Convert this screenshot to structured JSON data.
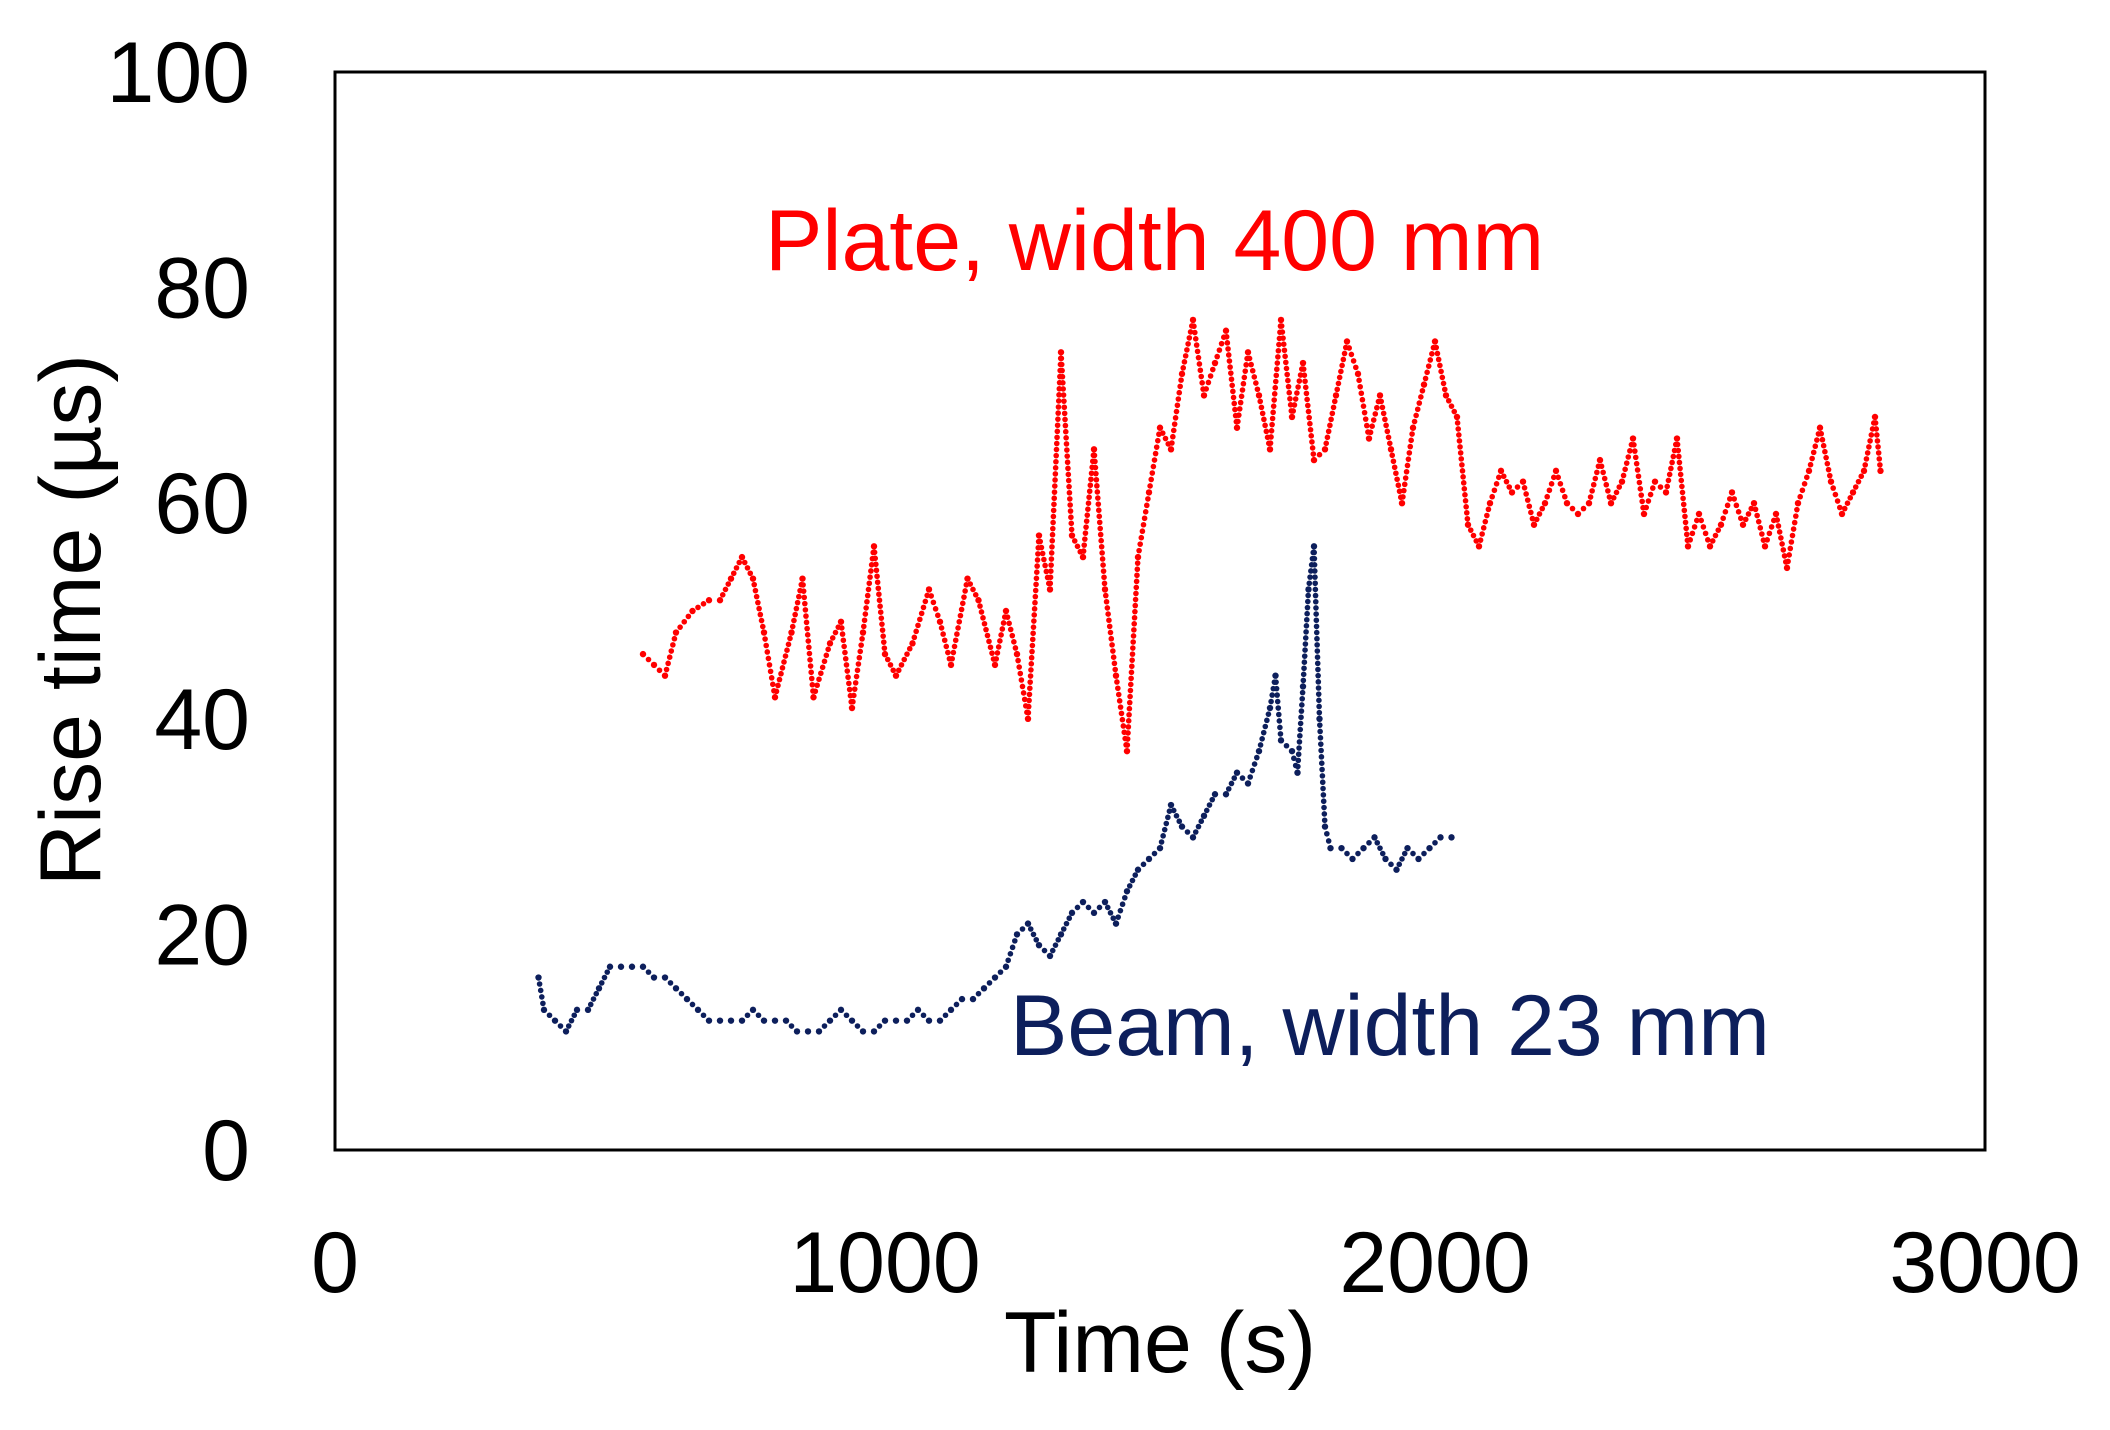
{
  "chart_data": {
    "type": "scatter",
    "title": "",
    "xlabel": "Time (s)",
    "ylabel": "Rise time (µs)",
    "xlim": [
      0,
      3000
    ],
    "ylim": [
      0,
      100
    ],
    "xticks": [
      "0",
      "1000",
      "2000",
      "3000"
    ],
    "yticks": [
      "0",
      "20",
      "40",
      "60",
      "80",
      "100"
    ],
    "grid": false,
    "legend": "none",
    "series": [
      {
        "name": "Plate, width 400 mm",
        "color": "#ff0000",
        "points": [
          [
            560,
            46
          ],
          [
            580,
            45
          ],
          [
            600,
            44
          ],
          [
            620,
            48
          ],
          [
            650,
            50
          ],
          [
            680,
            51
          ],
          [
            700,
            51
          ],
          [
            720,
            53
          ],
          [
            740,
            55
          ],
          [
            760,
            53
          ],
          [
            780,
            48
          ],
          [
            800,
            42
          ],
          [
            830,
            48
          ],
          [
            850,
            53
          ],
          [
            870,
            42
          ],
          [
            900,
            47
          ],
          [
            920,
            49
          ],
          [
            940,
            41
          ],
          [
            960,
            48
          ],
          [
            980,
            56
          ],
          [
            1000,
            46
          ],
          [
            1020,
            44
          ],
          [
            1050,
            47
          ],
          [
            1080,
            52
          ],
          [
            1100,
            49
          ],
          [
            1120,
            45
          ],
          [
            1150,
            53
          ],
          [
            1170,
            51
          ],
          [
            1200,
            45
          ],
          [
            1220,
            50
          ],
          [
            1240,
            46
          ],
          [
            1260,
            40
          ],
          [
            1280,
            57
          ],
          [
            1300,
            52
          ],
          [
            1320,
            74
          ],
          [
            1340,
            57
          ],
          [
            1360,
            55
          ],
          [
            1380,
            65
          ],
          [
            1400,
            52
          ],
          [
            1420,
            44
          ],
          [
            1440,
            37
          ],
          [
            1460,
            55
          ],
          [
            1480,
            61
          ],
          [
            1500,
            67
          ],
          [
            1520,
            65
          ],
          [
            1540,
            72
          ],
          [
            1560,
            77
          ],
          [
            1580,
            70
          ],
          [
            1600,
            73
          ],
          [
            1620,
            76
          ],
          [
            1640,
            67
          ],
          [
            1660,
            74
          ],
          [
            1680,
            70
          ],
          [
            1700,
            65
          ],
          [
            1720,
            77
          ],
          [
            1740,
            68
          ],
          [
            1760,
            73
          ],
          [
            1780,
            64
          ],
          [
            1800,
            65
          ],
          [
            1820,
            70
          ],
          [
            1840,
            75
          ],
          [
            1860,
            72
          ],
          [
            1880,
            66
          ],
          [
            1900,
            70
          ],
          [
            1920,
            65
          ],
          [
            1940,
            60
          ],
          [
            1960,
            67
          ],
          [
            1980,
            71
          ],
          [
            2000,
            75
          ],
          [
            2020,
            70
          ],
          [
            2040,
            68
          ],
          [
            2060,
            58
          ],
          [
            2080,
            56
          ],
          [
            2100,
            60
          ],
          [
            2120,
            63
          ],
          [
            2140,
            61
          ],
          [
            2160,
            62
          ],
          [
            2180,
            58
          ],
          [
            2200,
            60
          ],
          [
            2220,
            63
          ],
          [
            2240,
            60
          ],
          [
            2260,
            59
          ],
          [
            2280,
            60
          ],
          [
            2300,
            64
          ],
          [
            2320,
            60
          ],
          [
            2340,
            62
          ],
          [
            2360,
            66
          ],
          [
            2380,
            59
          ],
          [
            2400,
            62
          ],
          [
            2420,
            61
          ],
          [
            2440,
            66
          ],
          [
            2460,
            56
          ],
          [
            2480,
            59
          ],
          [
            2500,
            56
          ],
          [
            2520,
            58
          ],
          [
            2540,
            61
          ],
          [
            2560,
            58
          ],
          [
            2580,
            60
          ],
          [
            2600,
            56
          ],
          [
            2620,
            59
          ],
          [
            2640,
            54
          ],
          [
            2660,
            60
          ],
          [
            2680,
            63
          ],
          [
            2700,
            67
          ],
          [
            2720,
            62
          ],
          [
            2740,
            59
          ],
          [
            2760,
            61
          ],
          [
            2780,
            63
          ],
          [
            2800,
            68
          ],
          [
            2810,
            63
          ]
        ]
      },
      {
        "name": "Beam, width 23 mm",
        "color": "#0d1f5c",
        "points": [
          [
            370,
            16
          ],
          [
            380,
            13
          ],
          [
            400,
            12
          ],
          [
            420,
            11
          ],
          [
            440,
            13
          ],
          [
            460,
            13
          ],
          [
            480,
            15
          ],
          [
            500,
            17
          ],
          [
            520,
            17
          ],
          [
            540,
            17
          ],
          [
            560,
            17
          ],
          [
            580,
            16
          ],
          [
            600,
            16
          ],
          [
            620,
            15
          ],
          [
            640,
            14
          ],
          [
            660,
            13
          ],
          [
            680,
            12
          ],
          [
            700,
            12
          ],
          [
            720,
            12
          ],
          [
            740,
            12
          ],
          [
            760,
            13
          ],
          [
            780,
            12
          ],
          [
            800,
            12
          ],
          [
            820,
            12
          ],
          [
            840,
            11
          ],
          [
            860,
            11
          ],
          [
            880,
            11
          ],
          [
            900,
            12
          ],
          [
            920,
            13
          ],
          [
            940,
            12
          ],
          [
            960,
            11
          ],
          [
            980,
            11
          ],
          [
            1000,
            12
          ],
          [
            1020,
            12
          ],
          [
            1040,
            12
          ],
          [
            1060,
            13
          ],
          [
            1080,
            12
          ],
          [
            1100,
            12
          ],
          [
            1120,
            13
          ],
          [
            1140,
            14
          ],
          [
            1160,
            14
          ],
          [
            1180,
            15
          ],
          [
            1200,
            16
          ],
          [
            1220,
            17
          ],
          [
            1240,
            20
          ],
          [
            1260,
            21
          ],
          [
            1280,
            19
          ],
          [
            1300,
            18
          ],
          [
            1320,
            20
          ],
          [
            1340,
            22
          ],
          [
            1360,
            23
          ],
          [
            1380,
            22
          ],
          [
            1400,
            23
          ],
          [
            1420,
            21
          ],
          [
            1440,
            24
          ],
          [
            1460,
            26
          ],
          [
            1480,
            27
          ],
          [
            1500,
            28
          ],
          [
            1520,
            32
          ],
          [
            1540,
            30
          ],
          [
            1560,
            29
          ],
          [
            1580,
            31
          ],
          [
            1600,
            33
          ],
          [
            1620,
            33
          ],
          [
            1640,
            35
          ],
          [
            1660,
            34
          ],
          [
            1680,
            37
          ],
          [
            1700,
            41
          ],
          [
            1710,
            44
          ],
          [
            1720,
            38
          ],
          [
            1740,
            37
          ],
          [
            1750,
            35
          ],
          [
            1760,
            43
          ],
          [
            1770,
            52
          ],
          [
            1780,
            56
          ],
          [
            1790,
            40
          ],
          [
            1800,
            30
          ],
          [
            1810,
            28
          ],
          [
            1830,
            28
          ],
          [
            1850,
            27
          ],
          [
            1870,
            28
          ],
          [
            1890,
            29
          ],
          [
            1910,
            27
          ],
          [
            1930,
            26
          ],
          [
            1950,
            28
          ],
          [
            1970,
            27
          ],
          [
            1990,
            28
          ],
          [
            2010,
            29
          ],
          [
            2030,
            29
          ]
        ]
      }
    ]
  }
}
